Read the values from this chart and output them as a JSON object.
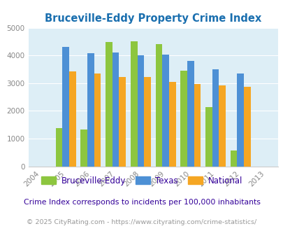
{
  "title": "Bruceville-Eddy Property Crime Index",
  "years": [
    2005,
    2006,
    2007,
    2008,
    2009,
    2010,
    2011,
    2012
  ],
  "bruceville": [
    1380,
    1340,
    4480,
    4520,
    4400,
    3450,
    2130,
    570
  ],
  "texas": [
    4300,
    4080,
    4100,
    4000,
    4020,
    3800,
    3490,
    3360
  ],
  "national": [
    3430,
    3340,
    3230,
    3220,
    3050,
    2960,
    2920,
    2870
  ],
  "color_bruceville": "#8dc63f",
  "color_texas": "#4d90d5",
  "color_national": "#f5a623",
  "bg_color": "#ddeef6",
  "xlim_lo": 2003.5,
  "xlim_hi": 2013.5,
  "ylim": [
    0,
    5000
  ],
  "yticks": [
    0,
    1000,
    2000,
    3000,
    4000,
    5000
  ],
  "xlabel_years": [
    2004,
    2005,
    2006,
    2007,
    2008,
    2009,
    2010,
    2011,
    2012,
    2013
  ],
  "footnote1": "Crime Index corresponds to incidents per 100,000 inhabitants",
  "footnote2": "© 2025 CityRating.com - https://www.cityrating.com/crime-statistics/",
  "bar_width": 0.27,
  "legend_labels": [
    "Bruceville-Eddy",
    "Texas",
    "National"
  ],
  "legend_text_color": "#330099",
  "title_color": "#1a6faf",
  "footnote1_color": "#330099",
  "footnote2_color": "#999999",
  "tick_color": "#888888"
}
